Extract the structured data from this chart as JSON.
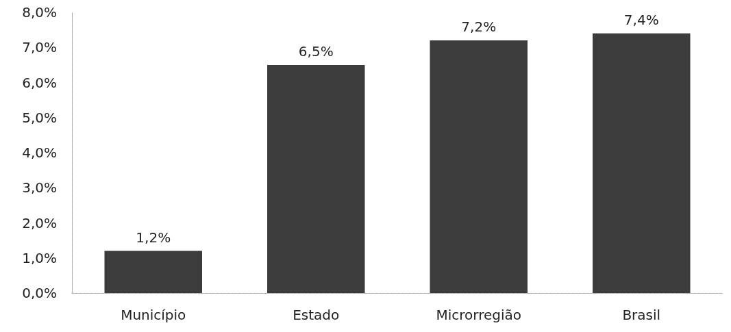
{
  "chart_data": {
    "type": "bar",
    "categories": [
      "Município",
      "Estado",
      "Microrregião",
      "Brasil"
    ],
    "values": [
      1.2,
      6.5,
      7.2,
      7.4
    ],
    "color": "#3c3c3c",
    "value_labels": [
      "1,2%",
      "6,5%",
      "7,2%",
      "7,4%"
    ],
    "ylim": [
      0,
      8
    ],
    "yticks": [
      {
        "value": 0,
        "label": "0,0%"
      },
      {
        "value": 1,
        "label": "1,0%"
      },
      {
        "value": 2,
        "label": "2,0%"
      },
      {
        "value": 3,
        "label": "3,0%"
      },
      {
        "value": 4,
        "label": "4,0%"
      },
      {
        "value": 5,
        "label": "5,0%"
      },
      {
        "value": 6,
        "label": "6,0%"
      },
      {
        "value": 7,
        "label": "7,0%"
      },
      {
        "value": 8,
        "label": "8,0%"
      }
    ],
    "grid": false
  }
}
